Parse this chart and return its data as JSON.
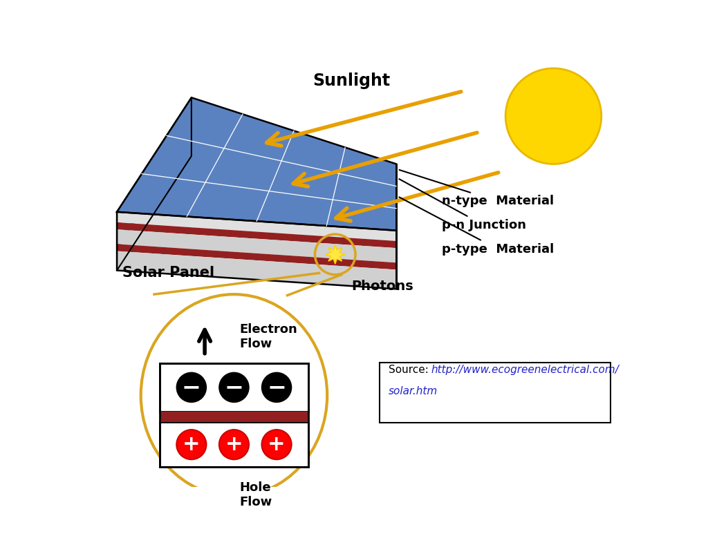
{
  "background_color": "#ffffff",
  "panel_blue": "#5b82c0",
  "panel_side_gray": "#cccccc",
  "panel_bottom_gray": "#b8b8b8",
  "panel_red_stripe": "#922020",
  "sun_color": "#FFD700",
  "sun_edge": "#e8b800",
  "arrow_color": "#E8A000",
  "zoom_circle_color": "#DAA520",
  "sunlight_label": "Sunlight",
  "solar_panel_label": "Solar Panel",
  "photons_label": "Photons",
  "n_type_label": "n-type  Material",
  "pn_junction_label": "p-n Junction",
  "p_type_label": "p-type  Material",
  "electron_flow_label": "Electron\nFlow",
  "hole_flow_label": "Hole\nFlow",
  "source_label": "Source: ",
  "source_url1": "http://www.ecogreenelectrical.com/",
  "source_url2": "solar.htm"
}
